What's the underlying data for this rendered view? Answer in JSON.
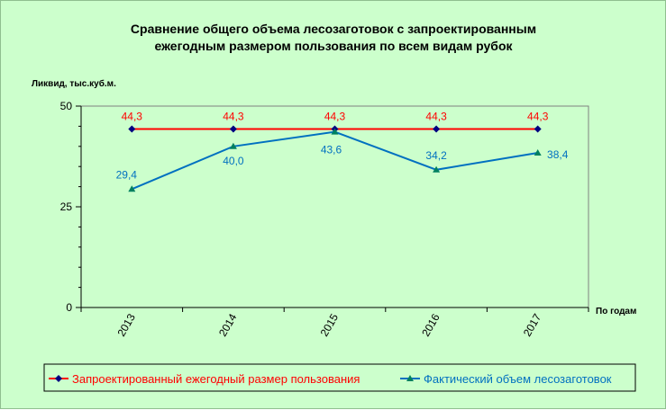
{
  "chart_data": {
    "type": "line",
    "title_lines": [
      "Сравнение общего объема лесозаготовок с запроектированным",
      "ежегодным размером пользования по всем видам рубок"
    ],
    "ylabel": "Ликвид, тыс.куб.м.",
    "xlabel": "По годам",
    "categories": [
      "2013",
      "2014",
      "2015",
      "2016",
      "2017"
    ],
    "ylim": [
      0,
      50
    ],
    "yticks": [
      0,
      25,
      50
    ],
    "grid": false,
    "legend_position": "bottom",
    "series": [
      {
        "name": "Запроектированный ежегодный размер пользования",
        "values": [
          44.3,
          44.3,
          44.3,
          44.3,
          44.3
        ],
        "labels": [
          "44,3",
          "44,3",
          "44,3",
          "44,3",
          "44,3"
        ],
        "color": "#ff0000",
        "marker_color": "#000080",
        "label_color": "#ff0000",
        "marker": "diamond"
      },
      {
        "name": "Фактический объем лесозаготовок",
        "values": [
          29.4,
          40.0,
          43.6,
          34.2,
          38.4
        ],
        "labels": [
          "29,4",
          "40,0",
          "43,6",
          "34,2",
          "38,4"
        ],
        "color": "#0070c0",
        "marker_color": "#008060",
        "label_color": "#0070c0",
        "marker": "triangle"
      }
    ]
  }
}
